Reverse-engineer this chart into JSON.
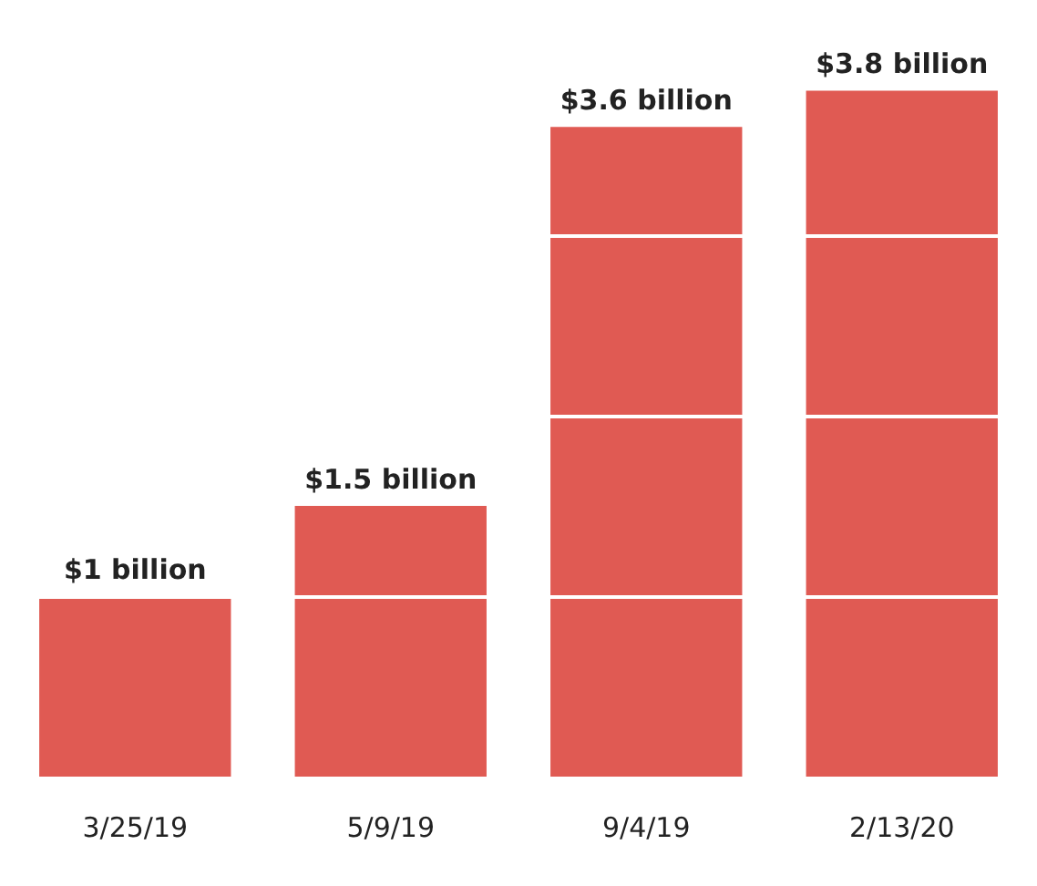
{
  "chart_data": {
    "type": "bar",
    "categories": [
      "3/25/19",
      "5/9/19",
      "9/4/19",
      "2/13/20"
    ],
    "values": [
      1,
      1.5,
      3.6,
      3.8
    ],
    "value_labels": [
      "$1 billion",
      "$1.5 billion",
      "$3.6 billion",
      "$3.8 billion"
    ],
    "color": "#e05a53",
    "yticks": [
      {
        "value": 1,
        "label": null
      },
      {
        "value": 2,
        "label": null
      },
      {
        "value": 3,
        "label": null
      }
    ],
    "grid": "y",
    "tick_labels": "x"
  }
}
